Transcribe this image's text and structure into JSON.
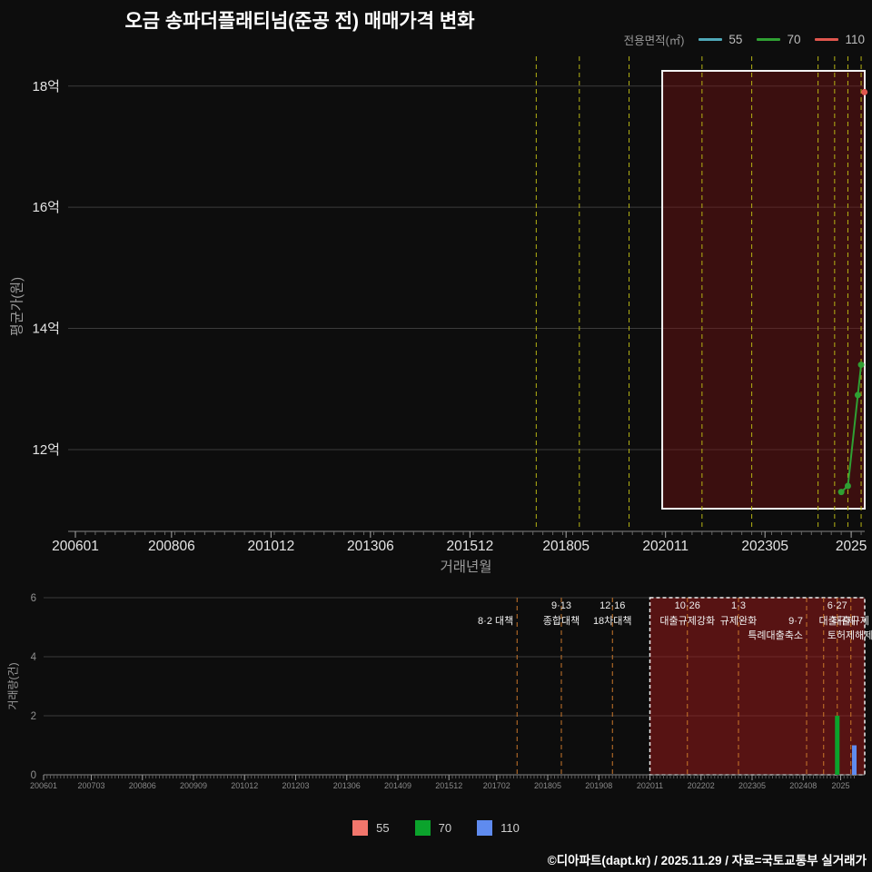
{
  "title": "오금 송파더플래티넘(준공 전) 매매가격 변화",
  "top_legend": {
    "title": "전용면적(㎡)",
    "items": [
      {
        "label": "55",
        "color": "#4fa8b8"
      },
      {
        "label": "70",
        "color": "#2fa033"
      },
      {
        "label": "110",
        "color": "#e0564e"
      }
    ]
  },
  "bottom_legend": {
    "items": [
      {
        "label": "55",
        "color": "#f2766c"
      },
      {
        "label": "70",
        "color": "#0ba32c"
      },
      {
        "label": "110",
        "color": "#5f8bef"
      }
    ]
  },
  "footer": "©디아파트(dapt.kr) / 2025.11.29 / 자료=국토교통부 실거래가",
  "events": [
    {
      "date": "201708",
      "rows": [
        "",
        "8·2 대책",
        ""
      ],
      "anchor": "end"
    },
    {
      "date": "201809",
      "rows": [
        "9·13",
        "종합대책",
        ""
      ],
      "anchor": "middle"
    },
    {
      "date": "201912",
      "rows": [
        "12·16",
        "18차대책",
        ""
      ],
      "anchor": "middle"
    },
    {
      "date": "202110",
      "rows": [
        "10·26",
        "대출규제강화",
        ""
      ],
      "anchor": "middle"
    },
    {
      "date": "202301",
      "rows": [
        "1·3",
        "규제완화",
        ""
      ],
      "anchor": "middle"
    },
    {
      "date": "202409",
      "rows": [
        "",
        "9·7",
        "특례대출축소"
      ],
      "anchor": "end"
    },
    {
      "date": "202502",
      "rows": [
        "",
        "",
        "토허제해제"
      ],
      "anchor": "start"
    },
    {
      "date": "202506",
      "rows": [
        "6·27",
        "대출규제",
        ""
      ],
      "anchor": "middle"
    },
    {
      "date": "202510",
      "rows": [
        "",
        "대출규제",
        ""
      ],
      "anchor": "middle"
    }
  ],
  "chart_data": [
    {
      "type": "line",
      "name": "price-history",
      "ylabel": "평균가(원)",
      "xlabel": "거래년월",
      "ylim": [
        10.65,
        18.55
      ],
      "yticks": [
        {
          "value": 12,
          "label": "12억"
        },
        {
          "value": 14,
          "label": "14억"
        },
        {
          "value": 16,
          "label": "16억"
        },
        {
          "value": 18,
          "label": "18억"
        }
      ],
      "xticks": [
        "200601",
        "200806",
        "201012",
        "201306",
        "201512",
        "201805",
        "202011",
        "202305",
        "2025"
      ],
      "grid": true,
      "legend_position": "top-right",
      "series": [
        {
          "name": "55",
          "color": "#4fa8b8",
          "points": []
        },
        {
          "name": "70",
          "color": "#2fa033",
          "points": [
            {
              "date": "202504",
              "price_uk": 11.3
            },
            {
              "date": "202506",
              "price_uk": 11.4
            },
            {
              "date": "202509",
              "price_uk": 12.9
            },
            {
              "date": "202510",
              "price_uk": 13.4
            }
          ]
        },
        {
          "name": "110",
          "color": "#e0564e",
          "points": [
            {
              "date": "202511",
              "price_uk": 17.9
            }
          ]
        }
      ],
      "highlight_box": {
        "start": "202010"
      }
    },
    {
      "type": "bar",
      "name": "volume-history",
      "ylabel": "거래량(건)",
      "ylim": [
        0,
        6
      ],
      "yticks": [
        0,
        2,
        4,
        6
      ],
      "xticks": [
        "200601",
        "200703",
        "200806",
        "200909",
        "201012",
        "201203",
        "201306",
        "201409",
        "201512",
        "201702",
        "201805",
        "201908",
        "202011",
        "202202",
        "202305",
        "202408",
        "2025"
      ],
      "grid": true,
      "series": [
        {
          "name": "55",
          "color": "#f2766c",
          "bars": []
        },
        {
          "name": "70",
          "color": "#0ba32c",
          "bars": [
            {
              "date": "202506",
              "count": 2
            }
          ]
        },
        {
          "name": "110",
          "color": "#5f8bef",
          "bars": [
            {
              "date": "202511",
              "count": 1
            }
          ]
        }
      ],
      "highlight_box": {
        "start": "202011"
      }
    }
  ]
}
